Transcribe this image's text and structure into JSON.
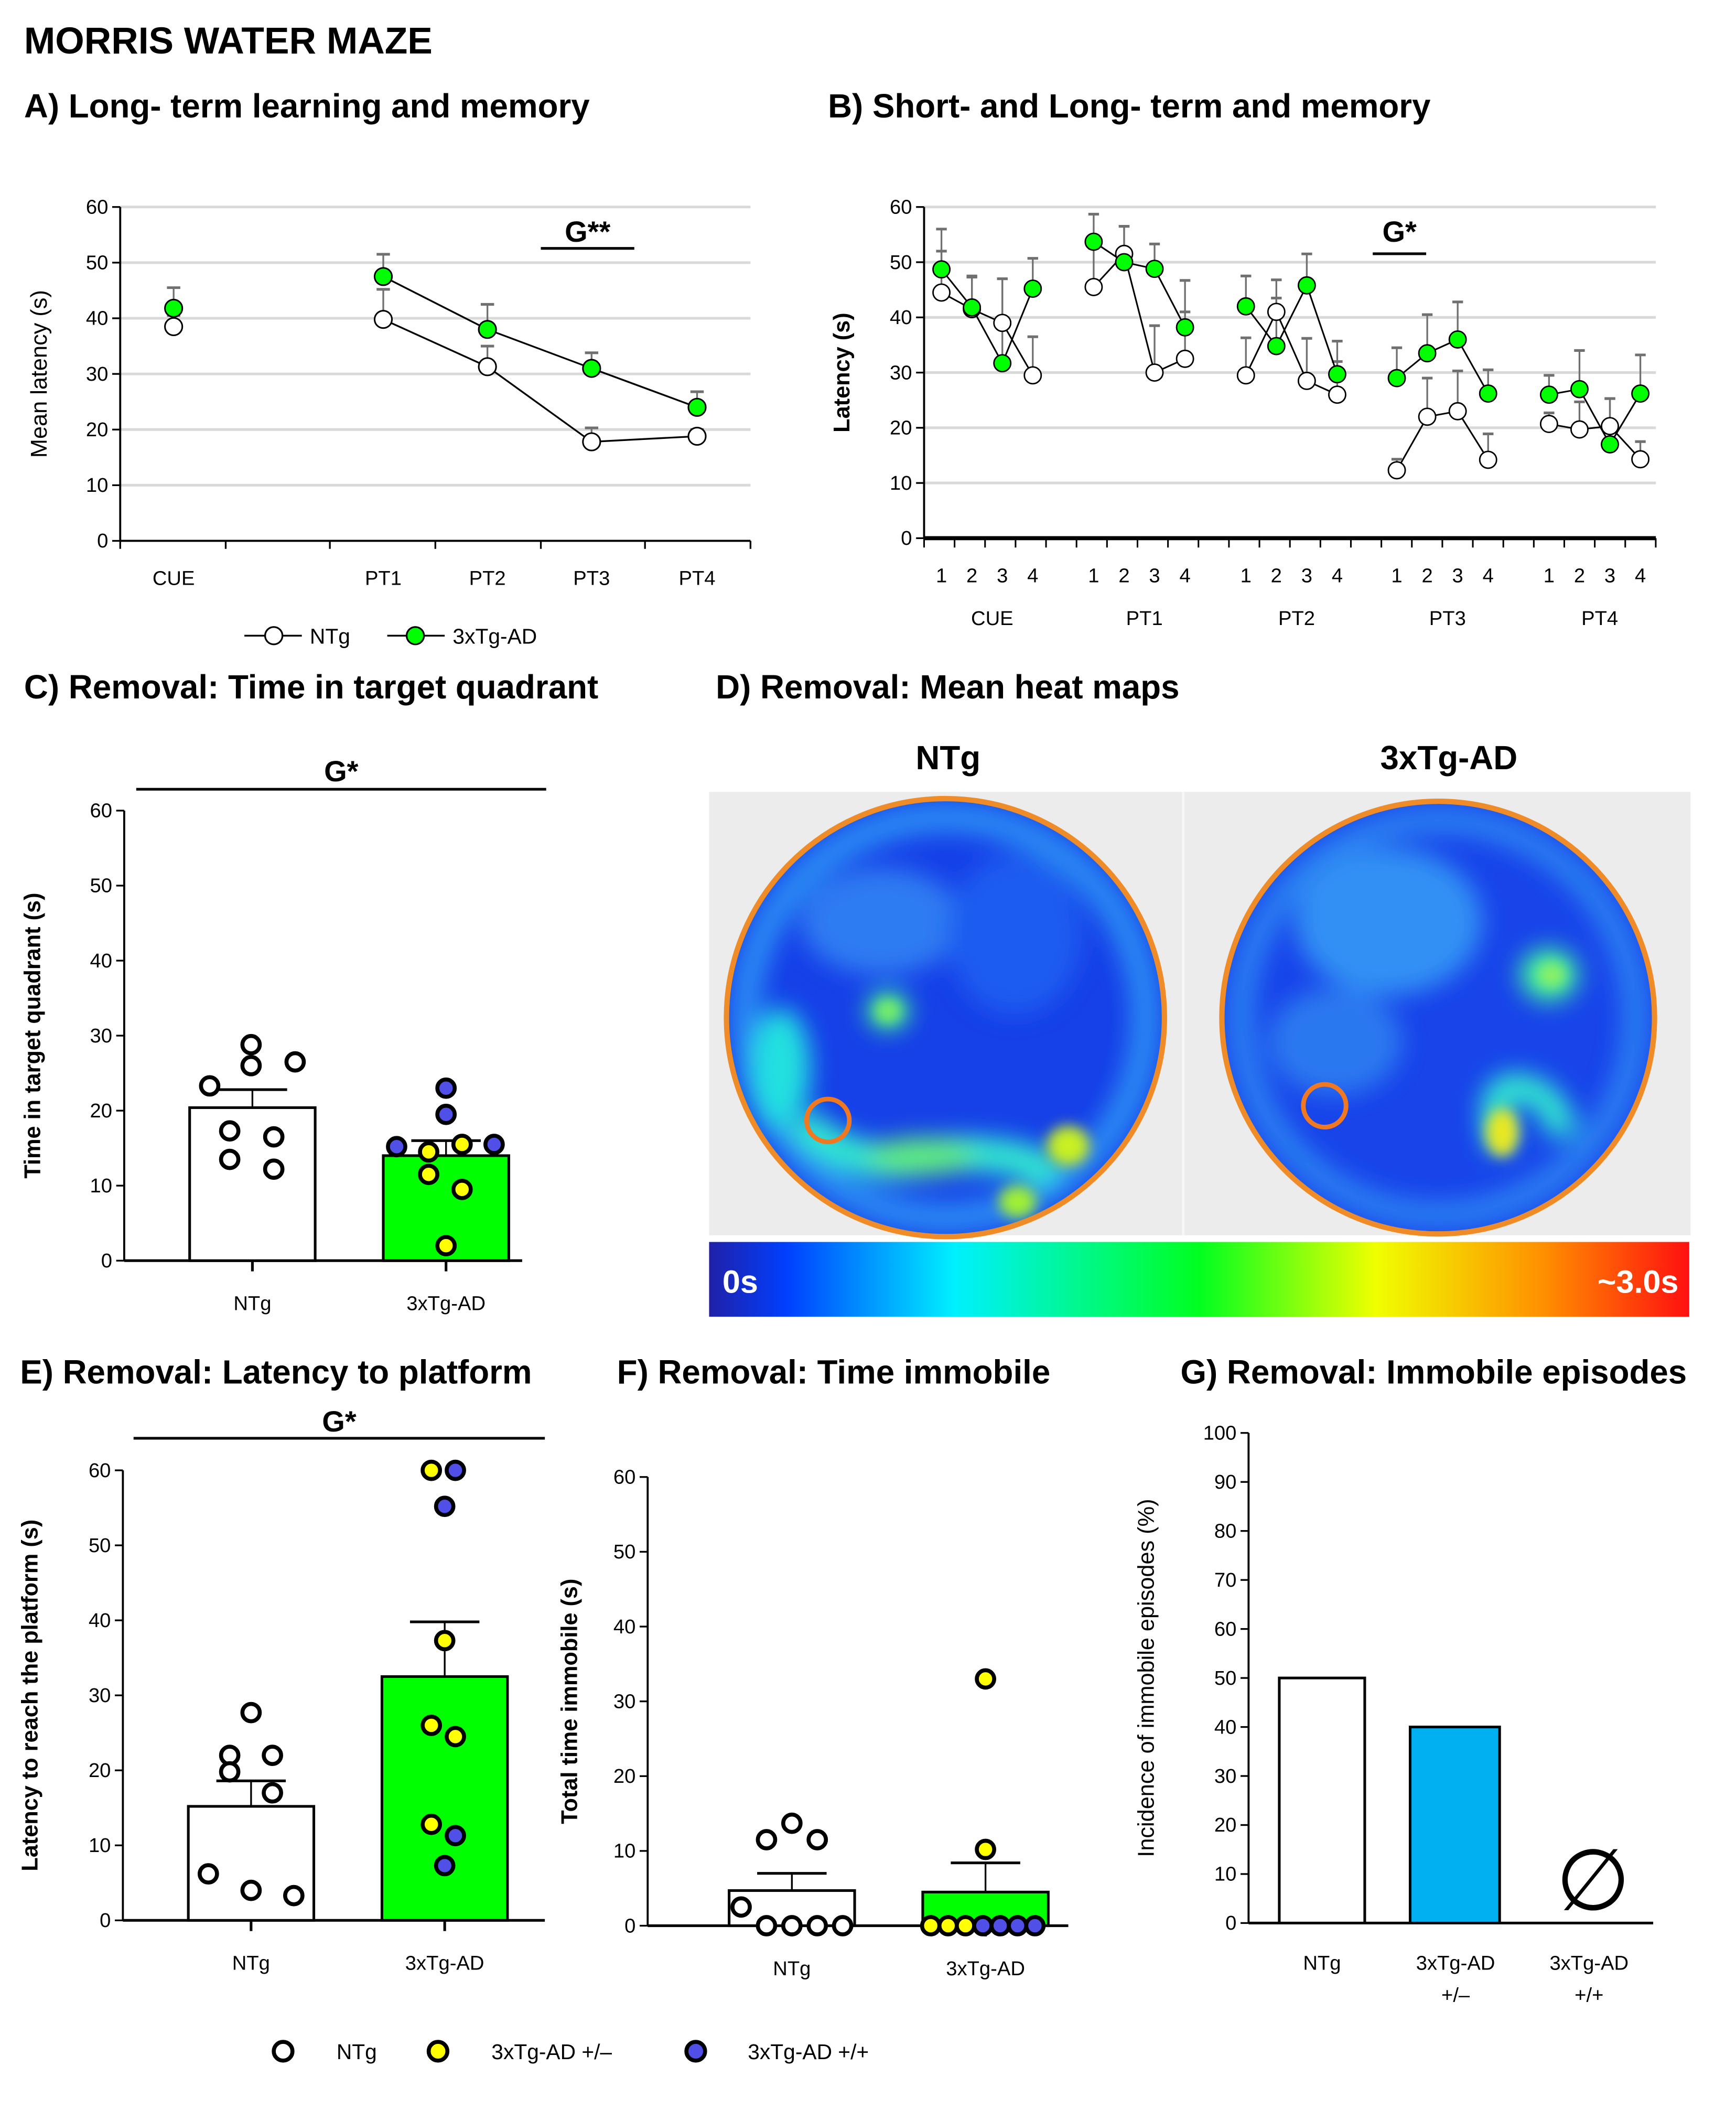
{
  "figure": {
    "title": "MORRIS WATER MAZE",
    "panels": {
      "A": "A) Long- term learning and memory",
      "B": "B) Short- and Long- term and memory",
      "C": "C) Removal: Time in target quadrant",
      "D": "D) Removal: Mean heat maps",
      "E": "E) Removal: Latency to platform",
      "F": "F) Removal: Time immobile",
      "G": "G) Removal: Immobile episodes"
    },
    "legend_lines": [
      "NTg",
      "3xTg-AD"
    ],
    "legend_dots": [
      "NTg",
      "3xTg-AD +/–",
      "3xTg-AD +/+"
    ],
    "colors": {
      "ntg": "#ffffff",
      "tg": "#00ff00",
      "het": "#ffff00",
      "hom": "#5050e8",
      "incidence_tg": "#00b0f0",
      "platform": "#f07820"
    },
    "heatmap": {
      "labels": [
        "NTg",
        "3xTg-AD"
      ],
      "scale_min": "0s",
      "scale_max": "~3.0s"
    }
  },
  "chart_data": [
    {
      "id": "A",
      "type": "line",
      "ylabel": "Mean latency (s)",
      "ylim": [
        0,
        60
      ],
      "yticks": [
        0,
        10,
        20,
        30,
        40,
        50,
        60
      ],
      "categories": [
        "CUE",
        "PT1",
        "PT2",
        "PT3",
        "PT4"
      ],
      "grid": true,
      "significance": "G**",
      "legend": "bottom",
      "series": [
        {
          "name": "NTg",
          "values": [
            38.5,
            39.8,
            31.3,
            17.8,
            18.8
          ],
          "sem": [
            2.0,
            5.4,
            3.7,
            2.5,
            1.2
          ]
        },
        {
          "name": "3xTg-AD",
          "values": [
            41.8,
            47.5,
            38.0,
            31.0,
            24.0
          ],
          "sem": [
            3.7,
            4.0,
            4.5,
            2.8,
            2.8
          ]
        }
      ]
    },
    {
      "id": "B",
      "type": "line",
      "ylabel": "Latency (s)",
      "ylim": [
        0,
        60
      ],
      "yticks": [
        0,
        10,
        20,
        30,
        40,
        50,
        60
      ],
      "groups": [
        "CUE",
        "PT1",
        "PT2",
        "PT3",
        "PT4"
      ],
      "trials": [
        "1",
        "2",
        "3",
        "4"
      ],
      "grid": true,
      "significance": "G*",
      "series": [
        {
          "name": "NTg",
          "values": [
            [
              44.5,
              41.5,
              39.0,
              29.5
            ],
            [
              45.5,
              51.5,
              30.0,
              32.5
            ],
            [
              29.5,
              41.0,
              28.5,
              26.0
            ],
            [
              12.3,
              22.0,
              23.0,
              14.2
            ],
            [
              20.7,
              19.7,
              20.3,
              14.3
            ]
          ],
          "sem": [
            [
              7.5,
              6,
              8,
              7
            ],
            [
              7,
              5,
              8.5,
              8.5
            ],
            [
              6.8,
              2.5,
              7.7,
              6
            ],
            [
              2,
              7,
              7.3,
              4.7
            ],
            [
              2,
              5,
              5,
              3.2
            ]
          ]
        },
        {
          "name": "3xTg-AD",
          "values": [
            [
              48.7,
              41.8,
              31.7,
              45.2
            ],
            [
              53.7,
              50.0,
              48.8,
              38.2
            ],
            [
              42.0,
              34.8,
              45.8,
              29.7
            ],
            [
              29.0,
              33.5,
              36.0,
              26.2
            ],
            [
              26.0,
              27.0,
              17.0,
              26.2
            ]
          ],
          "sem": [
            [
              7.3,
              5.5,
              15.3,
              5.5
            ],
            [
              5,
              6.5,
              4.5,
              8.5
            ],
            [
              5.5,
              12,
              5.7,
              6
            ],
            [
              5.5,
              7,
              6.8,
              4.3
            ],
            [
              3.5,
              7,
              8.3,
              7
            ]
          ]
        }
      ]
    },
    {
      "id": "C",
      "type": "bar",
      "ylabel": "Time in target quadrant (s)",
      "ylim": [
        0,
        60
      ],
      "yticks": [
        0,
        10,
        20,
        30,
        40,
        50,
        60
      ],
      "categories": [
        "NTg",
        "3xTg-AD"
      ],
      "values": [
        20.4,
        14.0
      ],
      "sem": [
        2.4,
        2.0
      ],
      "significance": "G*",
      "points": [
        {
          "group": "NTg",
          "genotype": "NTg",
          "values": [
            28.8,
            26.0,
            26.5,
            23.3,
            17.3,
            16.5,
            13.5,
            12.2
          ]
        },
        {
          "group": "3xTg-AD",
          "genotype": "3xTg-AD +/+",
          "values": [
            23.0,
            19.5,
            15.2,
            15.5
          ]
        },
        {
          "group": "3xTg-AD",
          "genotype": "3xTg-AD +/-",
          "values": [
            14.5,
            15.5,
            11.5,
            9.5,
            2.0
          ]
        }
      ]
    },
    {
      "id": "E",
      "type": "bar",
      "ylabel": "Latency to reach the platform  (s)",
      "ylim": [
        0,
        60
      ],
      "yticks": [
        0,
        10,
        20,
        30,
        40,
        50,
        60
      ],
      "categories": [
        "NTg",
        "3xTg-AD"
      ],
      "values": [
        15.2,
        32.5
      ],
      "sem": [
        3.4,
        7.3
      ],
      "significance": "G*",
      "points": [
        {
          "group": "NTg",
          "genotype": "NTg",
          "values": [
            27.7,
            22.0,
            22.0,
            19.8,
            17.0,
            6.2,
            4.0,
            3.3
          ]
        },
        {
          "group": "3xTg-AD",
          "genotype": "3xTg-AD +/-",
          "values": [
            60.0,
            37.3,
            26.0,
            24.5,
            12.8
          ]
        },
        {
          "group": "3xTg-AD",
          "genotype": "3xTg-AD +/+",
          "values": [
            60.0,
            55.2,
            11.3,
            7.3
          ]
        }
      ]
    },
    {
      "id": "F",
      "type": "bar",
      "ylabel": "Total time immobile (s)",
      "ylim": [
        0,
        60
      ],
      "yticks": [
        0,
        10,
        20,
        30,
        40,
        50,
        60
      ],
      "categories": [
        "NTg",
        "3xTg-AD"
      ],
      "values": [
        4.7,
        4.5
      ],
      "sem": [
        2.3,
        3.9
      ],
      "points": [
        {
          "group": "NTg",
          "genotype": "NTg",
          "values": [
            11.5,
            13.7,
            11.5,
            2.5,
            0,
            0,
            0,
            0
          ]
        },
        {
          "group": "3xTg-AD",
          "genotype": "3xTg-AD +/-",
          "values": [
            33.0,
            10.2,
            0,
            0,
            0
          ]
        },
        {
          "group": "3xTg-AD",
          "genotype": "3xTg-AD +/+",
          "values": [
            0,
            0,
            0,
            0
          ]
        }
      ]
    },
    {
      "id": "G",
      "type": "bar",
      "ylabel": "Incidence of immobile episodes (%)",
      "ylim": [
        0,
        100
      ],
      "yticks": [
        0,
        10,
        20,
        30,
        40,
        50,
        60,
        70,
        80,
        90,
        100
      ],
      "categories": [
        [
          "NTg"
        ],
        [
          "3xTg-AD",
          "+/–"
        ],
        [
          "3xTg-AD",
          "+/+"
        ]
      ],
      "values": [
        50,
        40,
        0
      ],
      "empty_marker": "∅"
    }
  ]
}
